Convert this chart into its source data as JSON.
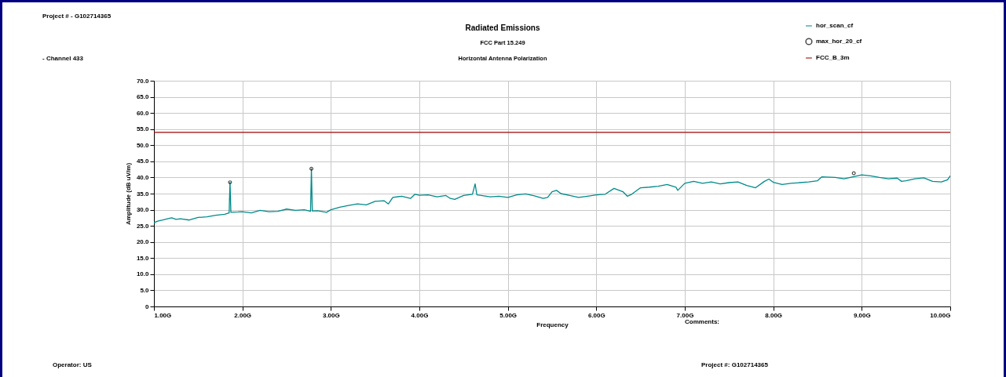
{
  "chart_data": {
    "type": "line",
    "title": "Radiated Emissions",
    "subtitle": "FCC Part 15.249\nHorizontal Antenna Polarization",
    "xlabel": "Frequency",
    "ylabel": "Amplitude (dB uV/m)",
    "annotations": [
      "Project # - G102714365",
      "- Channel 433",
      "Comments:",
      "Operator: US",
      "Project #: G102714365"
    ],
    "xlim": [
      1,
      10
    ],
    "xticks": [
      {
        "value": 1,
        "label": "1.00G"
      },
      {
        "value": 2,
        "label": "2.00G"
      },
      {
        "value": 3,
        "label": "3.00G"
      },
      {
        "value": 4,
        "label": "4.00G"
      },
      {
        "value": 5,
        "label": "5.00G"
      },
      {
        "value": 6,
        "label": "6.00G"
      },
      {
        "value": 7,
        "label": "7.00G"
      },
      {
        "value": 8,
        "label": "8.00G"
      },
      {
        "value": 9,
        "label": "9.00G"
      },
      {
        "value": 10,
        "label": "10.00G"
      }
    ],
    "ylim": [
      0,
      70
    ],
    "yticks": [
      0,
      {
        "value": 5,
        "label": "5.0"
      },
      {
        "value": 10,
        "label": "10.0"
      },
      {
        "value": 15,
        "label": "15.0"
      },
      {
        "value": 20,
        "label": "20.0"
      },
      {
        "value": 25,
        "label": "25.0"
      },
      {
        "value": 30,
        "label": "30.0"
      },
      {
        "value": 35,
        "label": "35.0"
      },
      {
        "value": 40,
        "label": "40.0"
      },
      {
        "value": 45,
        "label": "45.0"
      },
      {
        "value": 50,
        "label": "50.0"
      },
      {
        "value": 55,
        "label": "55.0"
      },
      {
        "value": 60,
        "label": "60.0"
      },
      {
        "value": 65,
        "label": "65.0"
      },
      {
        "value": 70,
        "label": "70.0"
      }
    ],
    "grid": true,
    "legend": "top right",
    "line_style": "solid",
    "series": [
      {
        "name": "hor_scan_cf",
        "type": "line",
        "color": "#008b8b",
        "x": [
          1.0,
          1.05,
          1.1,
          1.2,
          1.25,
          1.3,
          1.4,
          1.5,
          1.6,
          1.7,
          1.8,
          1.85,
          1.86,
          1.87,
          1.95,
          2.0,
          2.1,
          2.2,
          2.3,
          2.4,
          2.5,
          2.6,
          2.7,
          2.77,
          2.78,
          2.79,
          2.85,
          2.95,
          3.0,
          3.1,
          3.2,
          3.3,
          3.4,
          3.5,
          3.6,
          3.65,
          3.7,
          3.8,
          3.9,
          3.95,
          4.0,
          4.1,
          4.2,
          4.3,
          4.35,
          4.4,
          4.5,
          4.6,
          4.63,
          4.65,
          4.7,
          4.8,
          4.9,
          5.0,
          5.1,
          5.2,
          5.3,
          5.4,
          5.45,
          5.5,
          5.55,
          5.6,
          5.7,
          5.8,
          5.9,
          6.0,
          6.1,
          6.2,
          6.3,
          6.35,
          6.4,
          6.5,
          6.6,
          6.7,
          6.8,
          6.9,
          6.92,
          7.0,
          7.1,
          7.2,
          7.3,
          7.4,
          7.5,
          7.6,
          7.7,
          7.8,
          7.9,
          7.95,
          8.0,
          8.1,
          8.2,
          8.3,
          8.4,
          8.5,
          8.55,
          8.7,
          8.8,
          8.9,
          9.0,
          9.1,
          9.2,
          9.3,
          9.4,
          9.45,
          9.5,
          9.6,
          9.7,
          9.8,
          9.9,
          9.97,
          10.0
        ],
        "values": [
          26,
          26.5,
          26.8,
          27.5,
          27,
          27.2,
          26.8,
          27.6,
          27.8,
          28.3,
          28.6,
          29.0,
          38.5,
          29.2,
          29.3,
          29.4,
          29.0,
          29.8,
          29.4,
          29.5,
          30.2,
          29.8,
          30.0,
          29.5,
          42.7,
          29.6,
          29.7,
          29.2,
          30.0,
          30.8,
          31.3,
          31.8,
          31.5,
          32.6,
          32.8,
          31.8,
          33.8,
          34.2,
          33.5,
          34.8,
          34.5,
          34.6,
          34.0,
          34.4,
          33.5,
          33.2,
          34.4,
          34.8,
          38.0,
          34.6,
          34.4,
          34.0,
          34.2,
          33.8,
          34.6,
          34.9,
          34.3,
          33.5,
          33.8,
          35.6,
          36.0,
          35.0,
          34.4,
          33.8,
          34.2,
          34.6,
          34.8,
          36.6,
          35.6,
          34.2,
          34.8,
          36.8,
          37.0,
          37.3,
          37.8,
          37.0,
          36.0,
          38.2,
          38.8,
          38.2,
          38.6,
          38.0,
          38.4,
          38.6,
          37.5,
          36.8,
          38.8,
          39.5,
          38.5,
          37.8,
          38.2,
          38.4,
          38.6,
          39.0,
          40.2,
          40.0,
          39.6,
          40.2,
          40.8,
          40.5,
          40.0,
          39.6,
          39.8,
          38.8,
          39.0,
          39.6,
          39.9,
          38.8,
          38.6,
          39.3,
          40.5
        ]
      },
      {
        "name": "max_hor_20_cf",
        "type": "scatter",
        "marker": "circle",
        "color": "#000000",
        "x": [
          1.86,
          2.78,
          8.91
        ],
        "values": [
          38.5,
          42.7,
          41.3
        ]
      },
      {
        "name": "FCC_B_3m",
        "type": "line",
        "color": "#a00000",
        "x": [
          1,
          10
        ],
        "values": [
          54,
          54
        ]
      }
    ]
  }
}
